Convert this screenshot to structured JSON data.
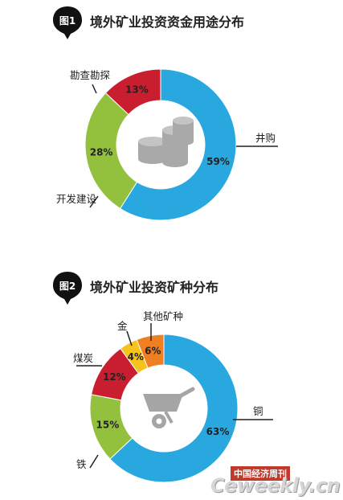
{
  "figure1": {
    "badge": "图1",
    "title": "境外矿业投资资金用途分布"
  },
  "figure2": {
    "badge": "图2",
    "title": "境外矿业投资矿种分布"
  },
  "chart_data": [
    {
      "type": "pie",
      "title": "境外矿业投资资金用途分布",
      "slices": [
        {
          "label": "井购",
          "value": 59,
          "value_label": "59%",
          "color": "#29a8e0"
        },
        {
          "label": "开发建设",
          "value": 28,
          "value_label": "28%",
          "color": "#93c13e"
        },
        {
          "label": "勘查勘探",
          "value": 13,
          "value_label": "13%",
          "color": "#c81e2f"
        }
      ]
    },
    {
      "type": "pie",
      "title": "境外矿业投资矿种分布",
      "slices": [
        {
          "label": "铜",
          "value": 63,
          "value_label": "63%",
          "color": "#29a8e0"
        },
        {
          "label": "铁",
          "value": 15,
          "value_label": "15%",
          "color": "#93c13e"
        },
        {
          "label": "煤炭",
          "value": 12,
          "value_label": "12%",
          "color": "#c81e2f"
        },
        {
          "label": "金",
          "value": 4,
          "value_label": "4%",
          "color": "#f6c21c"
        },
        {
          "label": "其他矿种",
          "value": 6,
          "value_label": "6%",
          "color": "#f07f22"
        }
      ]
    }
  ],
  "watermark": {
    "red_label": "中国经济周刊",
    "site": "Ceweekly.cn"
  },
  "icons": [
    "coins-stack-icon",
    "wheelbarrow-icon"
  ]
}
